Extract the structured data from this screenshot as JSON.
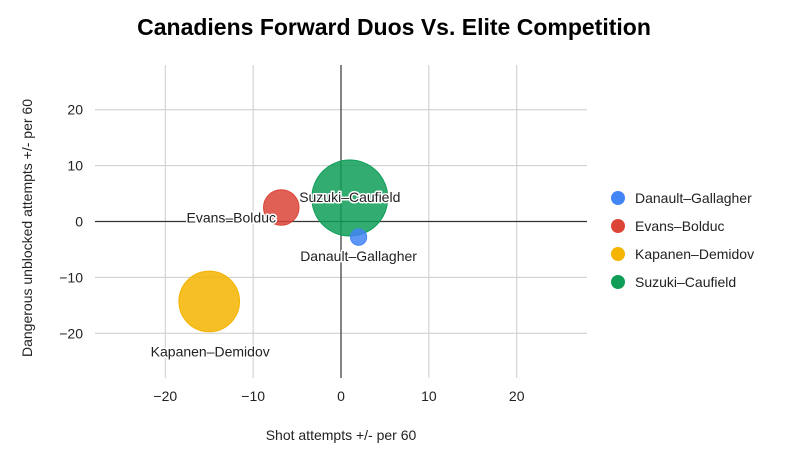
{
  "chart_data": {
    "type": "bubble",
    "title": "Canadiens Forward Duos Vs. Elite Competition",
    "xlabel": "Shot attempts +/- per 60",
    "ylabel": "Dangerous unblocked attempts +/- per 60",
    "xlim": [
      -28,
      28
    ],
    "ylim": [
      -28,
      28
    ],
    "xticks": [
      -20,
      -10,
      0,
      10,
      20
    ],
    "yticks": [
      -20,
      -10,
      0,
      10,
      20
    ],
    "grid": true,
    "legend_position": "right",
    "series": [
      {
        "name": "Danault–Gallagher",
        "x": 2,
        "y": -2.8,
        "size": 1,
        "color": "#4285f4"
      },
      {
        "name": "Evans–Bolduc",
        "x": -6.8,
        "y": 2.5,
        "size": 4.8,
        "color": "#db4437"
      },
      {
        "name": "Kapanen–Demidov",
        "x": -15,
        "y": -14.3,
        "size": 14,
        "color": "#f4b400"
      },
      {
        "name": "Suzuki–Caufield",
        "x": 1,
        "y": 4.2,
        "size": 22,
        "color": "#0f9d58"
      }
    ]
  }
}
